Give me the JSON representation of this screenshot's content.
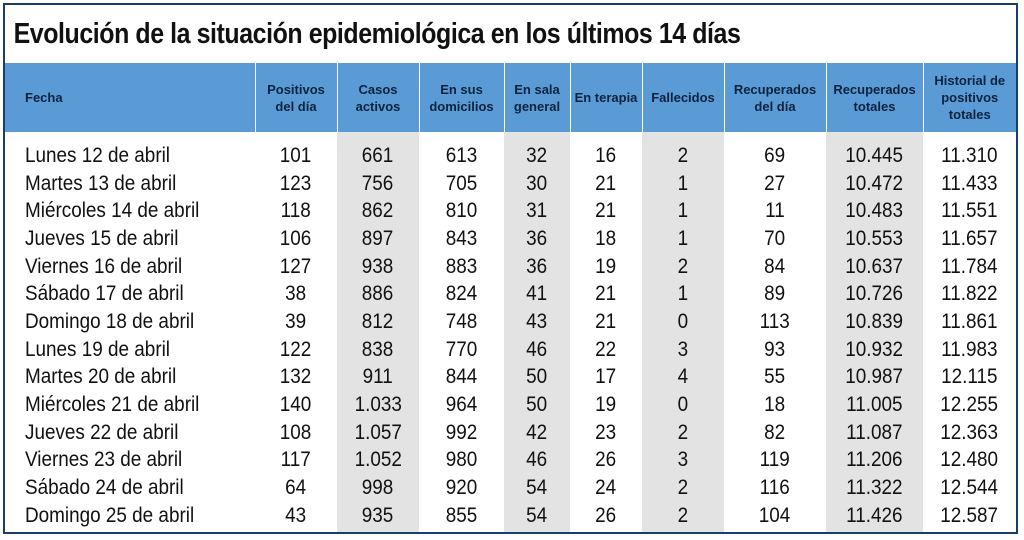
{
  "title": "Evolución de la situación epidemiológica en los últimos 14 días",
  "colors": {
    "header_bg": "#5b9bd5",
    "header_text": "#0c2340",
    "shaded_column": "#e3e3e3",
    "border": "#1a3e6b"
  },
  "headers": [
    "Fecha",
    "Positivos del día",
    "Casos activos",
    "En sus domicilios",
    "En sala general",
    "En terapia",
    "Fallecidos",
    "Recuperados del día",
    "Recuperados totales",
    "Historial de positivos totales"
  ],
  "rows": [
    [
      "Lunes 12 de abril",
      "101",
      "661",
      "613",
      "32",
      "16",
      "2",
      "69",
      "10.445",
      "11.310"
    ],
    [
      "Martes 13 de abril",
      "123",
      "756",
      "705",
      "30",
      "21",
      "1",
      "27",
      "10.472",
      "11.433"
    ],
    [
      "Miércoles 14 de abril",
      "118",
      "862",
      "810",
      "31",
      "21",
      "1",
      "11",
      "10.483",
      "11.551"
    ],
    [
      "Jueves 15 de abril",
      "106",
      "897",
      "843",
      "36",
      "18",
      "1",
      "70",
      "10.553",
      "11.657"
    ],
    [
      "Viernes 16 de abril",
      "127",
      "938",
      "883",
      "36",
      "19",
      "2",
      "84",
      "10.637",
      "11.784"
    ],
    [
      "Sábado 17 de abril",
      "38",
      "886",
      "824",
      "41",
      "21",
      "1",
      "89",
      "10.726",
      "11.822"
    ],
    [
      "Domingo 18 de abril",
      "39",
      "812",
      "748",
      "43",
      "21",
      "0",
      "113",
      "10.839",
      "11.861"
    ],
    [
      "Lunes 19 de abril",
      "122",
      "838",
      "770",
      "46",
      "22",
      "3",
      "93",
      "10.932",
      "11.983"
    ],
    [
      "Martes 20 de abril",
      "132",
      "911",
      "844",
      "50",
      "17",
      "4",
      "55",
      "10.987",
      "12.115"
    ],
    [
      "Miércoles 21 de abril",
      "140",
      "1.033",
      "964",
      "50",
      "19",
      "0",
      "18",
      "11.005",
      "12.255"
    ],
    [
      "Jueves 22 de abril",
      "108",
      "1.057",
      "992",
      "42",
      "23",
      "2",
      "82",
      "11.087",
      "12.363"
    ],
    [
      "Viernes 23 de abril",
      "117",
      "1.052",
      "980",
      "46",
      "26",
      "3",
      "119",
      "11.206",
      "12.480"
    ],
    [
      "Sábado 24 de abril",
      "64",
      "998",
      "920",
      "54",
      "24",
      "2",
      "116",
      "11.322",
      "12.544"
    ],
    [
      "Domingo 25 de abril",
      "43",
      "935",
      "855",
      "54",
      "26",
      "2",
      "104",
      "11.426",
      "12.587"
    ]
  ]
}
